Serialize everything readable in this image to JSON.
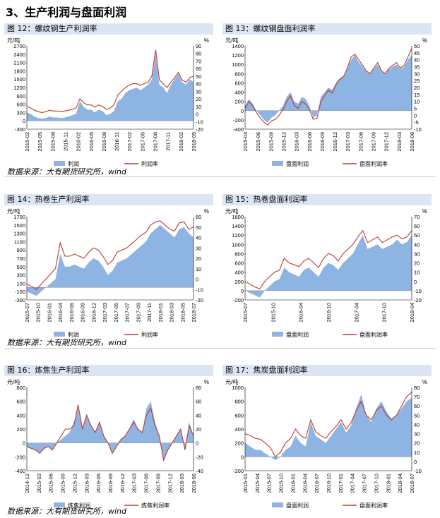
{
  "section_title": "3、生产利润与盘面利润",
  "source_text": "数据来源：大有期货研究所，wind",
  "colors": {
    "bar": "#8eb4e3",
    "line": "#c0392b",
    "header_bg": "#dce6f2"
  },
  "chart_data": [
    {
      "id": "c12",
      "type": "area",
      "title": "图 12：螺纹钢生产利润率",
      "y_unit": "元/吨",
      "y2_unit": "%",
      "y_ticks": [
        "2700",
        "2400",
        "2100",
        "1800",
        "1500",
        "1200",
        "900",
        "600",
        "300",
        "0",
        "-300"
      ],
      "y2_ticks": [
        "90",
        "80",
        "70",
        "60",
        "50",
        "40",
        "30",
        "20",
        "10",
        "0",
        "-10",
        "-20"
      ],
      "ylim": [
        -300,
        2700
      ],
      "y2lim": [
        -20,
        90
      ],
      "x_ticks": [
        "2015-02",
        "2015-05",
        "2015-08",
        "2015-11",
        "2016-02",
        "2016-05",
        "2016-08",
        "2016-11",
        "2017-02",
        "2017-05",
        "2017-08",
        "2017-11",
        "2018-02",
        "2018-05"
      ],
      "series": [
        {
          "name": "利润",
          "kind": "area",
          "axis": "left",
          "values": [
            300,
            250,
            150,
            100,
            80,
            100,
            150,
            120,
            120,
            100,
            120,
            150,
            200,
            250,
            700,
            500,
            400,
            400,
            300,
            400,
            350,
            200,
            250,
            350,
            700,
            800,
            1000,
            1100,
            1150,
            1200,
            1100,
            1200,
            1300,
            1500,
            2400,
            1300,
            1200,
            1000,
            1300,
            1500,
            1700,
            1400,
            1300,
            1500,
            1400
          ]
        },
        {
          "name": "利润率",
          "kind": "line",
          "axis": "right",
          "values": [
            10,
            8,
            5,
            3,
            2,
            3,
            5,
            4,
            4,
            3,
            4,
            5,
            6,
            8,
            20,
            15,
            12,
            12,
            9,
            12,
            10,
            6,
            8,
            12,
            25,
            30,
            35,
            38,
            40,
            40,
            38,
            40,
            42,
            50,
            85,
            45,
            40,
            35,
            42,
            48,
            55,
            45,
            42,
            48,
            50
          ]
        }
      ]
    },
    {
      "id": "c13",
      "type": "area",
      "title": "图 13：螺纹钢盘面利润率",
      "y_unit": "元/吨",
      "y2_unit": "%",
      "y_ticks": [
        "1400",
        "1200",
        "1000",
        "800",
        "600",
        "400",
        "200",
        "0",
        "-200",
        "-400"
      ],
      "y2_ticks": [
        "50",
        "45",
        "40",
        "35",
        "30",
        "25",
        "20",
        "15",
        "10",
        "5",
        "0",
        "-5",
        "-10"
      ],
      "ylim": [
        -400,
        1400
      ],
      "y2lim": [
        -10,
        50
      ],
      "x_ticks": [
        "2015-03",
        "2015-06",
        "2015-09",
        "2015-12",
        "2016-03",
        "2016-06",
        "2016-09",
        "2016-12",
        "2017-03",
        "2017-06",
        "2017-09",
        "2017-12",
        "2018-03",
        "2018-06"
      ],
      "series": [
        {
          "name": "盘面利润",
          "kind": "area",
          "axis": "left",
          "values": [
            100,
            250,
            150,
            0,
            -100,
            -200,
            -250,
            -150,
            -100,
            0,
            100,
            300,
            400,
            200,
            150,
            300,
            250,
            100,
            -150,
            -100,
            300,
            400,
            500,
            450,
            600,
            700,
            750,
            900,
            1100,
            1200,
            1050,
            950,
            850,
            800,
            900,
            1000,
            850,
            800,
            900,
            950,
            1000,
            900,
            950,
            1100,
            1200
          ]
        },
        {
          "name": "盘面利润率",
          "kind": "line",
          "axis": "right",
          "values": [
            5,
            10,
            7,
            2,
            -2,
            -5,
            -7,
            -4,
            -3,
            0,
            4,
            10,
            14,
            7,
            5,
            10,
            8,
            4,
            -3,
            -2,
            10,
            14,
            18,
            16,
            22,
            26,
            28,
            34,
            42,
            44,
            40,
            36,
            32,
            30,
            34,
            38,
            32,
            30,
            34,
            36,
            38,
            34,
            36,
            42,
            48
          ]
        }
      ]
    },
    {
      "id": "c14",
      "type": "area",
      "title": "图 14：热卷生产利润率",
      "y_unit": "元/吨",
      "y2_unit": "%",
      "y_ticks": [
        "1700",
        "1500",
        "1300",
        "1100",
        "900",
        "700",
        "500",
        "300",
        "100",
        "-100",
        "-300"
      ],
      "y2_ticks": [
        "60",
        "50",
        "40",
        "30",
        "20",
        "10",
        "0",
        "-10",
        "-20"
      ],
      "ylim": [
        -300,
        1700
      ],
      "y2lim": [
        -20,
        60
      ],
      "x_ticks": [
        "2015-07",
        "2015-10",
        "2016-01",
        "2016-04",
        "2016-06",
        "2016-09",
        "2016-12",
        "2017-03",
        "2017-05",
        "2017-07",
        "2017-09",
        "2017-11",
        "2018-01",
        "2018-03",
        "2018-05",
        "2018-07"
      ],
      "series": [
        {
          "name": "利润",
          "kind": "area",
          "axis": "left",
          "values": [
            -100,
            -150,
            -200,
            -100,
            0,
            100,
            200,
            800,
            500,
            500,
            550,
            500,
            450,
            600,
            700,
            650,
            500,
            300,
            400,
            600,
            650,
            700,
            800,
            900,
            1000,
            1100,
            1300,
            1400,
            1500,
            1400,
            1300,
            1200,
            1400,
            1450,
            1300,
            1200
          ]
        },
        {
          "name": "利润率",
          "kind": "line",
          "axis": "right",
          "values": [
            -5,
            -7,
            -10,
            -5,
            0,
            5,
            10,
            35,
            22,
            22,
            24,
            22,
            20,
            26,
            30,
            28,
            22,
            14,
            18,
            26,
            28,
            30,
            34,
            38,
            42,
            45,
            52,
            55,
            56,
            52,
            48,
            46,
            54,
            55,
            48,
            50
          ]
        }
      ]
    },
    {
      "id": "c15",
      "type": "area",
      "title": "图 15：热卷盘面利润率",
      "y_unit": "元/吨",
      "y2_unit": "%",
      "y_ticks": [
        "1600",
        "1400",
        "1200",
        "1000",
        "800",
        "600",
        "400",
        "200",
        "0",
        "-200"
      ],
      "y2_ticks": [
        "70",
        "60",
        "50",
        "40",
        "30",
        "20",
        "10",
        "0",
        "-10",
        "-20"
      ],
      "ylim": [
        -200,
        1600
      ],
      "y2lim": [
        -20,
        70
      ],
      "x_ticks": [
        "2015-07",
        "2015-10",
        "2016-04",
        "2016-10",
        "2017-04",
        "2017-10",
        "2018-04"
      ],
      "series": [
        {
          "name": "盘面利润",
          "kind": "area",
          "axis": "left",
          "values": [
            0,
            -50,
            -100,
            -150,
            0,
            100,
            200,
            250,
            500,
            400,
            350,
            300,
            450,
            500,
            400,
            300,
            500,
            600,
            550,
            450,
            600,
            700,
            800,
            1000,
            1200,
            900,
            950,
            1000,
            900,
            950,
            1000,
            1100,
            1000,
            1050,
            1200
          ]
        },
        {
          "name": "盘面利润率",
          "kind": "line",
          "axis": "right",
          "values": [
            0,
            -3,
            -6,
            -8,
            0,
            5,
            10,
            12,
            25,
            20,
            18,
            16,
            22,
            25,
            20,
            15,
            25,
            30,
            28,
            22,
            30,
            35,
            40,
            48,
            55,
            42,
            45,
            48,
            42,
            45,
            48,
            50,
            46,
            48,
            55
          ]
        }
      ]
    },
    {
      "id": "c16",
      "type": "area",
      "title": "图 16：炼焦生产利润率",
      "y_unit": "元/吨",
      "y2_unit": "%",
      "y_ticks": [
        "800",
        "600",
        "400",
        "200",
        "0",
        "-200",
        "-400"
      ],
      "y2_ticks": [
        "80",
        "60",
        "40",
        "20",
        "0",
        "-20",
        "-40"
      ],
      "ylim": [
        -400,
        800
      ],
      "y2lim": [
        -40,
        80
      ],
      "x_ticks": [
        "2014-12",
        "2015-03",
        "2015-06",
        "2015-09",
        "2015-12",
        "2016-03",
        "2016-06",
        "2016-09",
        "2016-12",
        "2017-03",
        "2017-06",
        "2017-09",
        "2017-12",
        "2018-03",
        "2018-06"
      ],
      "series": [
        {
          "name": "炼焦利润",
          "kind": "area",
          "axis": "left",
          "values": [
            -50,
            -80,
            -100,
            -150,
            -80,
            -50,
            -100,
            0,
            50,
            100,
            150,
            300,
            500,
            200,
            400,
            250,
            150,
            300,
            100,
            0,
            -150,
            -50,
            50,
            100,
            200,
            350,
            200,
            150,
            500,
            600,
            300,
            100,
            -250,
            -100,
            0,
            100,
            200,
            -100,
            300,
            100
          ]
        },
        {
          "name": "炼焦利润率",
          "kind": "line",
          "axis": "right",
          "values": [
            -5,
            -8,
            -10,
            -15,
            -8,
            -5,
            -10,
            0,
            10,
            20,
            20,
            25,
            55,
            20,
            40,
            25,
            15,
            30,
            10,
            0,
            -15,
            -5,
            5,
            10,
            20,
            30,
            20,
            15,
            40,
            50,
            25,
            10,
            -25,
            -10,
            0,
            10,
            20,
            -10,
            25,
            10
          ]
        }
      ]
    },
    {
      "id": "c17",
      "type": "area",
      "title": "图 17：焦炭盘面利润率",
      "y_unit": "元/吨",
      "y2_unit": "%",
      "y_ticks": [
        "1000",
        "800",
        "600",
        "400",
        "200",
        "0",
        "-200"
      ],
      "y2_ticks": [
        "80",
        "70",
        "60",
        "50",
        "40",
        "30",
        "20",
        "10",
        "0",
        "-10"
      ],
      "ylim": [
        -200,
        1000
      ],
      "y2lim": [
        -10,
        80
      ],
      "x_ticks": [
        "2015-01",
        "2015-04",
        "2015-07",
        "2015-10",
        "2016-01",
        "2016-04",
        "2016-07",
        "2016-10",
        "2017-01",
        "2017-04",
        "2017-07",
        "2017-10",
        "2018-01",
        "2018-04",
        "2018-07"
      ],
      "series": [
        {
          "name": "盘面利润",
          "kind": "area",
          "axis": "left",
          "values": [
            200,
            150,
            100,
            100,
            50,
            0,
            -50,
            0,
            100,
            150,
            300,
            200,
            150,
            500,
            300,
            250,
            200,
            300,
            400,
            500,
            350,
            450,
            700,
            900,
            600,
            500,
            700,
            800,
            650,
            550,
            600,
            700,
            800,
            850
          ]
        },
        {
          "name": "盘面利润率",
          "kind": "line",
          "axis": "right",
          "values": [
            30,
            28,
            25,
            24,
            20,
            15,
            5,
            10,
            20,
            25,
            35,
            28,
            25,
            45,
            32,
            28,
            25,
            32,
            38,
            45,
            35,
            42,
            55,
            65,
            50,
            45,
            55,
            60,
            50,
            45,
            50,
            60,
            70,
            75
          ]
        }
      ]
    }
  ]
}
